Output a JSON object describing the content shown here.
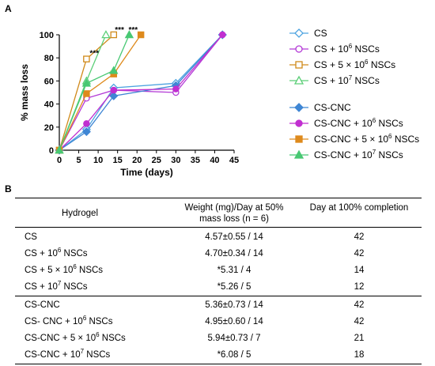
{
  "panel_a_label": "A",
  "panel_b_label": "B",
  "chart_data": {
    "type": "line",
    "xlabel": "Time (days)",
    "ylabel": "% mass loss",
    "xlim": [
      0,
      45
    ],
    "ylim": [
      0,
      100
    ],
    "xticks": [
      "0",
      "5",
      "10",
      "15",
      "20",
      "25",
      "30",
      "35",
      "40",
      "45"
    ],
    "yticks": [
      "0",
      "20",
      "40",
      "60",
      "80",
      "100"
    ],
    "grid": false,
    "legend_position": "right",
    "annotations": [
      {
        "text": "***",
        "x": 9,
        "y": 82
      },
      {
        "text": "***",
        "x": 15.5,
        "y": 102
      },
      {
        "text": "***",
        "x": 19,
        "y": 102
      }
    ],
    "series": [
      {
        "name": "CS",
        "name_parts": [
          "CS",
          "",
          ""
        ],
        "color": "#4da3e0",
        "marker": "diamond",
        "filled": false,
        "points": [
          [
            0,
            0
          ],
          [
            7,
            18
          ],
          [
            14,
            54
          ],
          [
            30,
            58
          ],
          [
            42,
            100
          ]
        ]
      },
      {
        "name": "CS + 10^6 NSCs",
        "name_parts": [
          "CS + 10",
          "6",
          " NSCs"
        ],
        "color": "#b33ad6",
        "marker": "circle",
        "filled": false,
        "points": [
          [
            0,
            0
          ],
          [
            7,
            45
          ],
          [
            14,
            52
          ],
          [
            30,
            50
          ],
          [
            42,
            100
          ]
        ]
      },
      {
        "name": "CS + 5 × 10^6 NSCs",
        "name_parts": [
          "CS + 5 × 10",
          "6",
          " NSCs"
        ],
        "color": "#d08a1a",
        "marker": "square",
        "filled": false,
        "points": [
          [
            0,
            0
          ],
          [
            7,
            79
          ],
          [
            14,
            100
          ]
        ]
      },
      {
        "name": "CS + 10^7 NSCs",
        "name_parts": [
          "CS + 10",
          "7",
          " NSCs"
        ],
        "color": "#5ccf78",
        "marker": "triangle",
        "filled": false,
        "points": [
          [
            0,
            0
          ],
          [
            7,
            60
          ],
          [
            12,
            100
          ]
        ]
      },
      {
        "name": "CS-CNC",
        "name_parts": [
          "CS-CNC",
          "",
          ""
        ],
        "color": "#3f86d4",
        "marker": "diamond",
        "filled": true,
        "points": [
          [
            0,
            0
          ],
          [
            7,
            16
          ],
          [
            14,
            47
          ],
          [
            30,
            56
          ],
          [
            42,
            100
          ]
        ]
      },
      {
        "name": "CS-CNC + 10^6 NSCs",
        "name_parts": [
          "CS-CNC + 10",
          "6",
          " NSCs"
        ],
        "color": "#c12fd0",
        "marker": "circle",
        "filled": true,
        "points": [
          [
            0,
            0
          ],
          [
            7,
            23
          ],
          [
            14,
            52
          ],
          [
            30,
            53
          ],
          [
            42,
            100
          ]
        ]
      },
      {
        "name": "CS-CNC + 5 × 10^6 NSCs",
        "name_parts": [
          "CS-CNC + 5 × 10",
          "6",
          " NSCs"
        ],
        "color": "#de8a1c",
        "marker": "square",
        "filled": true,
        "points": [
          [
            0,
            0
          ],
          [
            7,
            49
          ],
          [
            14,
            66
          ],
          [
            21,
            100
          ]
        ]
      },
      {
        "name": "CS-CNC + 10^7 NSCs",
        "name_parts": [
          "CS-CNC + 10",
          "7",
          " NSCs"
        ],
        "color": "#48c873",
        "marker": "triangle",
        "filled": true,
        "points": [
          [
            0,
            0
          ],
          [
            7,
            58
          ],
          [
            14,
            69
          ],
          [
            18,
            100
          ]
        ]
      }
    ]
  },
  "table": {
    "headers": {
      "hydrogel": "Hydrogel",
      "weight_line1": "Weight (mg)/Day at 50%",
      "weight_line2": "mass loss (n = 6)",
      "completion": "Day at 100% completion"
    },
    "rows": [
      {
        "name": [
          "CS",
          "",
          ""
        ],
        "weight": "4.57±0.55 / 14",
        "day": "42"
      },
      {
        "name": [
          "CS + 10",
          "6",
          " NSCs"
        ],
        "weight": "4.70±0.34 / 14",
        "day": "42"
      },
      {
        "name": [
          "CS + 5 × 10",
          "6",
          " NSCs"
        ],
        "weight": "*5.31 / 4",
        "day": "14"
      },
      {
        "name": [
          "CS + 10",
          "7",
          " NSCs"
        ],
        "weight": "*5.26 / 5",
        "day": "12"
      },
      {
        "name": [
          "CS-CNC",
          "",
          ""
        ],
        "weight": "5.36±0.73 / 14",
        "day": "42"
      },
      {
        "name": [
          "CS- CNC + 10",
          "6",
          " NSCs"
        ],
        "weight": "4.95±0.60 / 14",
        "day": "42"
      },
      {
        "name": [
          "CS-CNC + 5 × 10",
          "6",
          " NSCs"
        ],
        "weight": "5.94±0.73 / 7",
        "day": "21"
      },
      {
        "name": [
          "CS-CNC + 10",
          "7",
          " NSCs"
        ],
        "weight": "*6.08 / 5",
        "day": "18"
      }
    ]
  }
}
